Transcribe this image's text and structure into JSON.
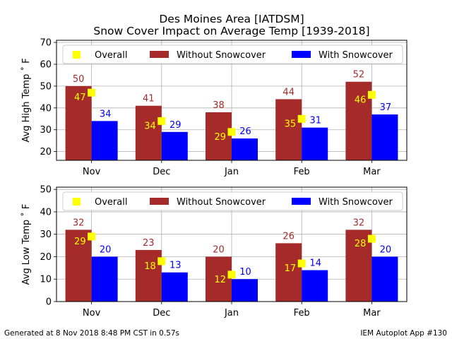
{
  "title_line1": "Des Moines Area [IATDSM]",
  "title_line2": "Snow Cover Impact on Average Temp [1939-2018]",
  "footer_left": "Generated at 8 Nov 2018 8:48 PM CST in 0.57s",
  "footer_right": "IEM Autoplot App #130",
  "colors": {
    "without": "#a52a2a",
    "with": "#0000ff",
    "overall": "#ffff00"
  },
  "chart_data": [
    {
      "type": "bar",
      "ylabel": "Avg High Temp ˚ F",
      "categories": [
        "Nov",
        "Dec",
        "Jan",
        "Feb",
        "Mar"
      ],
      "ylim": [
        16,
        71
      ],
      "yticks": [
        20,
        30,
        40,
        50,
        60,
        70
      ],
      "grid": true,
      "legend_position": "top",
      "series": [
        {
          "name": "Without Snowcover",
          "values": [
            50,
            41,
            38,
            44,
            52
          ]
        },
        {
          "name": "With Snowcover",
          "values": [
            34,
            29,
            26,
            31,
            37
          ]
        },
        {
          "name": "Overall",
          "values": [
            47,
            34,
            29,
            35,
            46
          ]
        }
      ]
    },
    {
      "type": "bar",
      "ylabel": "Avg Low Temp ˚ F",
      "categories": [
        "Nov",
        "Dec",
        "Jan",
        "Feb",
        "Mar"
      ],
      "ylim": [
        0,
        51
      ],
      "yticks": [
        0,
        10,
        20,
        30,
        40,
        50
      ],
      "grid": true,
      "legend_position": "top",
      "series": [
        {
          "name": "Without Snowcover",
          "values": [
            32,
            23,
            20,
            26,
            32
          ]
        },
        {
          "name": "With Snowcover",
          "values": [
            20,
            13,
            10,
            14,
            20
          ]
        },
        {
          "name": "Overall",
          "values": [
            29,
            18,
            12,
            17,
            28
          ]
        }
      ]
    }
  ]
}
